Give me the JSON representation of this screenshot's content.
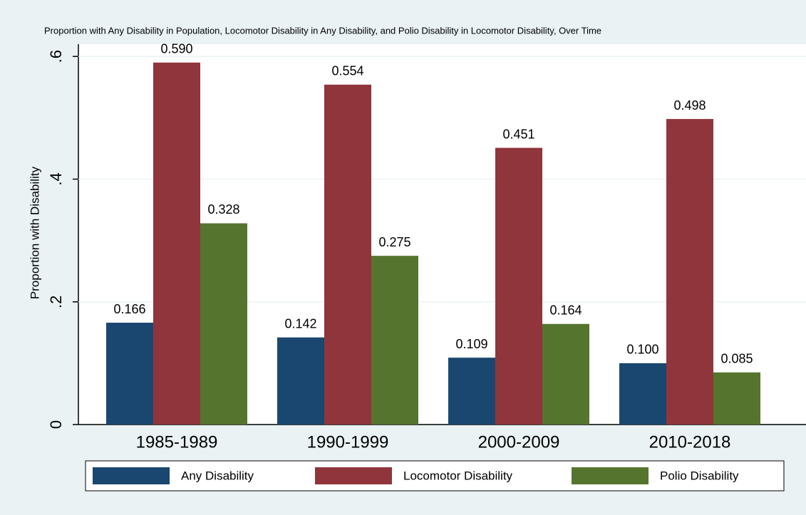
{
  "chart_data": {
    "type": "bar",
    "title": "Proportion with Any Disability in Population, Locomotor Disability in Any Disability, and Polio Disability in Locomotor Disability, Over Time",
    "y_label": "Proportion with Disability",
    "categories": [
      "1985-1989",
      "1990-1999",
      "2000-2009",
      "2010-2018"
    ],
    "series": [
      {
        "name": "Any Disability",
        "color": "#1a476f",
        "values": [
          0.166,
          0.142,
          0.109,
          0.1
        ],
        "value_labels": [
          "0.166",
          "0.142",
          "0.109",
          "0.100"
        ]
      },
      {
        "name": "Locomotor Disability",
        "color": "#90353b",
        "values": [
          0.59,
          0.554,
          0.451,
          0.498
        ],
        "value_labels": [
          "0.590",
          "0.554",
          "0.451",
          "0.498"
        ]
      },
      {
        "name": "Polio Disability",
        "color": "#55752f",
        "values": [
          0.328,
          0.275,
          0.164,
          0.085
        ],
        "value_labels": [
          "0.328",
          "0.275",
          "0.164",
          "0.085"
        ]
      }
    ],
    "ylim": [
      0,
      0.62
    ],
    "yticks": [
      0,
      {
        "value": 0.2,
        "label": ".2"
      },
      {
        "value": 0.4,
        "label": ".4"
      },
      {
        "value": 0.6,
        "label": ".6"
      }
    ],
    "grid": true,
    "legend": "bottom"
  }
}
